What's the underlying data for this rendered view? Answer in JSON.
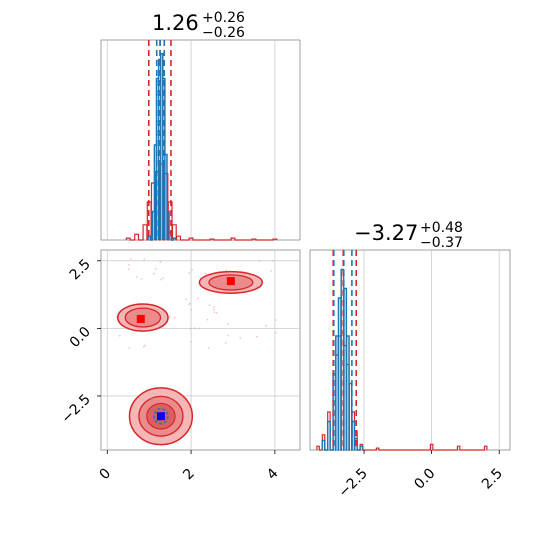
{
  "colors": {
    "red": "#d62728",
    "blue": "#1f77b4",
    "marker_red": "#ff0000",
    "marker_blue": "#0000ff",
    "grid": "#cccccc",
    "axis": "#888888"
  },
  "chart_data": [
    {
      "type": "histogram",
      "panel": "param1-marginal",
      "title": {
        "value": "1.26",
        "plus": "+0.26",
        "minus": "−0.26"
      },
      "xlim": [
        -0.15,
        4.6
      ],
      "grid": true,
      "red_quantiles": [
        0.99,
        1.26,
        1.52
      ],
      "blue_quantiles": [
        1.18,
        1.26,
        1.36
      ],
      "red_hist": {
        "x": [
          0.5,
          0.7,
          0.9,
          1.0,
          1.1,
          1.2,
          1.3,
          1.4,
          1.5,
          1.6,
          1.7,
          2.0,
          2.5,
          3.0,
          3.5,
          4.0
        ],
        "y": [
          0.01,
          0.03,
          0.08,
          0.2,
          0.3,
          0.36,
          0.4,
          0.35,
          0.2,
          0.08,
          0.02,
          0.01,
          0.005,
          0.01,
          0.005,
          0.005
        ]
      },
      "blue_hist": {
        "x": [
          1.0,
          1.1,
          1.15,
          1.2,
          1.25,
          1.3,
          1.35,
          1.4,
          1.45,
          1.5,
          1.6
        ],
        "y": [
          0.02,
          0.15,
          0.5,
          0.85,
          0.95,
          0.98,
          0.85,
          0.45,
          0.15,
          0.04,
          0.01
        ]
      }
    },
    {
      "type": "contour",
      "panel": "param1-vs-param2",
      "xlim": [
        -0.15,
        4.6
      ],
      "ylim": [
        -4.5,
        2.9
      ],
      "grid": true,
      "xticks": [
        "0",
        "2",
        "4"
      ],
      "yticks": [
        "2.5",
        "0.0",
        "−2.5"
      ],
      "red_modes": [
        {
          "x": 1.28,
          "y": -3.25,
          "rx": 0.75,
          "ry": 1.05
        },
        {
          "x": 0.85,
          "y": 0.4,
          "rx": 0.6,
          "ry": 0.5
        },
        {
          "x": 2.95,
          "y": 1.7,
          "rx": 0.75,
          "ry": 0.4
        }
      ],
      "red_markers": [
        {
          "x": 0.8,
          "y": 0.35
        },
        {
          "x": 2.95,
          "y": 1.75
        }
      ],
      "blue_marker": {
        "x": 1.28,
        "y": -3.25
      }
    },
    {
      "type": "histogram",
      "panel": "param2-marginal",
      "title": {
        "value": "−3.27",
        "plus": "+0.48",
        "minus": "−0.37"
      },
      "xlim": [
        -4.5,
        2.9
      ],
      "xticks": [
        "−2.5",
        "0.0",
        "2.5"
      ],
      "grid": true,
      "red_quantiles": [
        -3.64,
        -3.27,
        -2.79
      ],
      "blue_quantiles": [
        -3.62,
        -3.25,
        -2.95
      ],
      "red_hist": {
        "x": [
          -4.2,
          -4.0,
          -3.8,
          -3.6,
          -3.5,
          -3.4,
          -3.3,
          -3.2,
          -3.1,
          -3.0,
          -2.9,
          -2.8,
          -2.6,
          -2.0,
          0.0,
          1.0,
          2.0
        ],
        "y": [
          0.02,
          0.08,
          0.2,
          0.4,
          0.5,
          0.6,
          0.62,
          0.55,
          0.45,
          0.35,
          0.2,
          0.1,
          0.03,
          0.01,
          0.03,
          0.02,
          0.02
        ]
      },
      "blue_hist": {
        "x": [
          -4.0,
          -3.8,
          -3.6,
          -3.5,
          -3.4,
          -3.3,
          -3.2,
          -3.1,
          -3.0,
          -2.9,
          -2.8,
          -2.6
        ],
        "y": [
          0.05,
          0.15,
          0.4,
          0.6,
          0.8,
          0.95,
          0.85,
          0.6,
          0.35,
          0.15,
          0.06,
          0.02
        ]
      }
    }
  ]
}
